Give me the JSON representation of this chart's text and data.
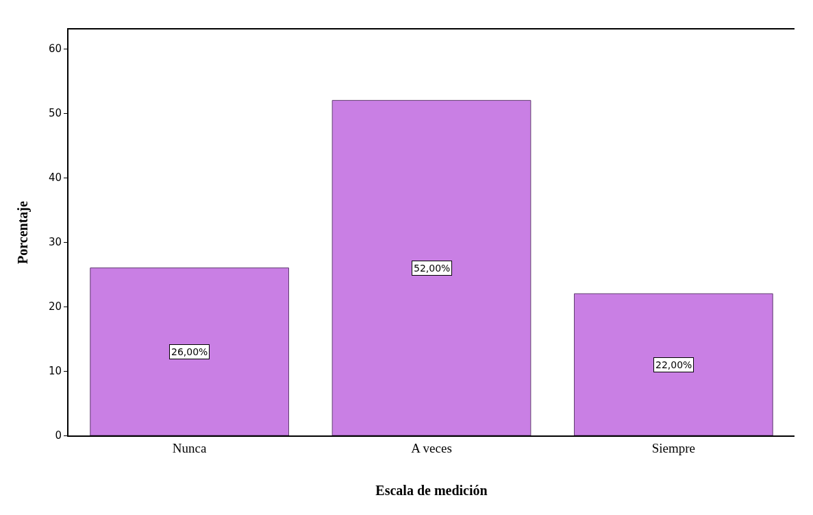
{
  "chart_data": {
    "type": "bar",
    "xlabel": "Escala de medición",
    "ylabel": "Porcentaje",
    "categories": [
      "Nunca",
      "A veces",
      "Siempre"
    ],
    "values": [
      26,
      52,
      22
    ],
    "color": "#c97fe4",
    "value_labels": [
      "26,00%",
      "52,00%",
      "22,00%"
    ],
    "ylim": [
      0,
      63
    ],
    "yticks": [
      0,
      10,
      20,
      30,
      40,
      50,
      60
    ]
  }
}
